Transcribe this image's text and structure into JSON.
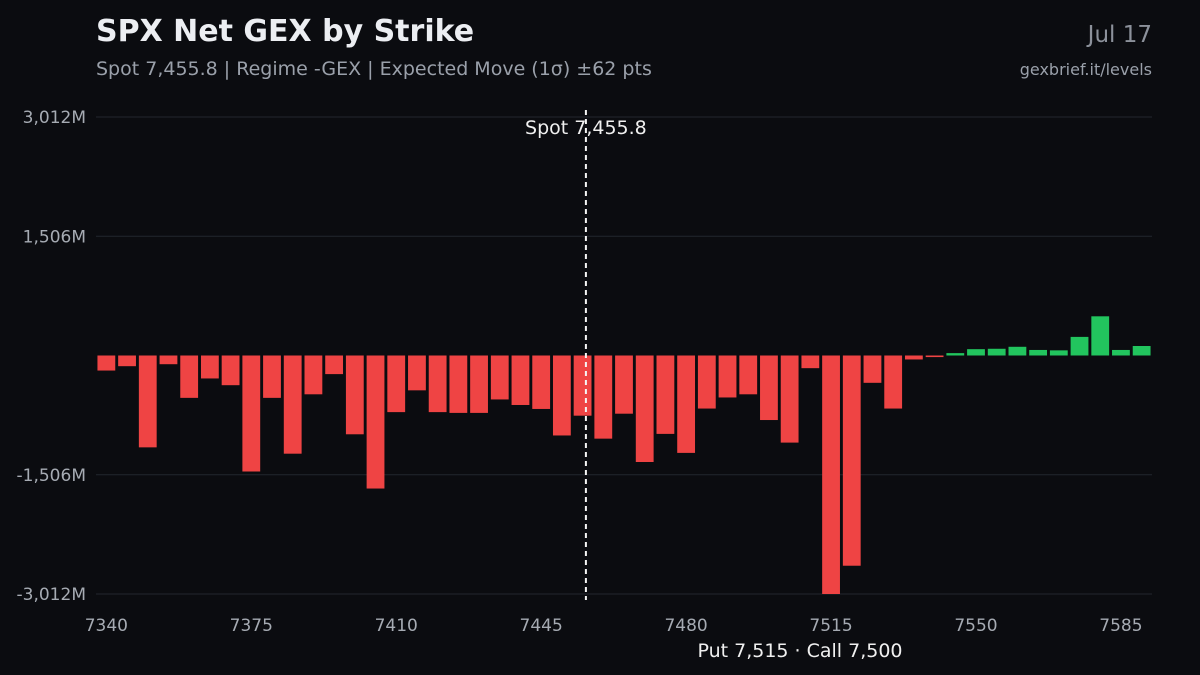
{
  "header": {
    "title": "SPX Net GEX by Strike",
    "subtitle": "Spot 7,455.8 | Regime -GEX | Expected Move (1σ) ±62 pts",
    "date": "Jul 17",
    "source": "gexbrief.it/levels"
  },
  "colors": {
    "background": "#0b0c10",
    "positive": "#22c55e",
    "negative": "#ef4444",
    "grid": "#23262e",
    "spot_line": "#f5f5f5"
  },
  "chart_data": {
    "type": "bar",
    "title": "SPX Net GEX by Strike",
    "xlabel": "",
    "ylabel": "",
    "x_ticks": [
      "7340",
      "7375",
      "7410",
      "7445",
      "7480",
      "7515",
      "7550",
      "7585"
    ],
    "x_tick_values": [
      7340,
      7375,
      7410,
      7445,
      7480,
      7515,
      7550,
      7585
    ],
    "y_ticks": [
      "3,012M",
      "1,506M",
      "-1,506M",
      "-3,012M"
    ],
    "y_tick_values": [
      3012,
      1506,
      -1506,
      -3012
    ],
    "ylim": [
      -3012,
      3012
    ],
    "xlim": [
      7337.5,
      7592.5
    ],
    "unit": "M",
    "grid": true,
    "spot": {
      "value": 7455.8,
      "label": "Spot 7,455.8"
    },
    "footer_label": "Put 7,515 · Call 7,500",
    "categories": [
      7340,
      7345,
      7350,
      7355,
      7360,
      7365,
      7370,
      7375,
      7380,
      7385,
      7390,
      7395,
      7400,
      7405,
      7410,
      7415,
      7420,
      7425,
      7430,
      7435,
      7440,
      7445,
      7450,
      7455,
      7460,
      7465,
      7470,
      7475,
      7480,
      7485,
      7490,
      7495,
      7500,
      7505,
      7510,
      7515,
      7520,
      7525,
      7530,
      7535,
      7540,
      7545,
      7550,
      7555,
      7560,
      7565,
      7570,
      7575,
      7580,
      7585,
      7590
    ],
    "values": [
      -190,
      -135,
      -1160,
      -110,
      -535,
      -290,
      -375,
      -1465,
      -535,
      -1240,
      -490,
      -235,
      -995,
      -1680,
      -715,
      -440,
      -715,
      -725,
      -725,
      -555,
      -625,
      -675,
      -1010,
      -760,
      -1050,
      -735,
      -1345,
      -990,
      -1230,
      -670,
      -530,
      -490,
      -815,
      -1100,
      -160,
      -3012,
      -2655,
      -345,
      -670,
      -50,
      -20,
      30,
      80,
      85,
      110,
      70,
      65,
      235,
      495,
      70,
      120
    ]
  }
}
